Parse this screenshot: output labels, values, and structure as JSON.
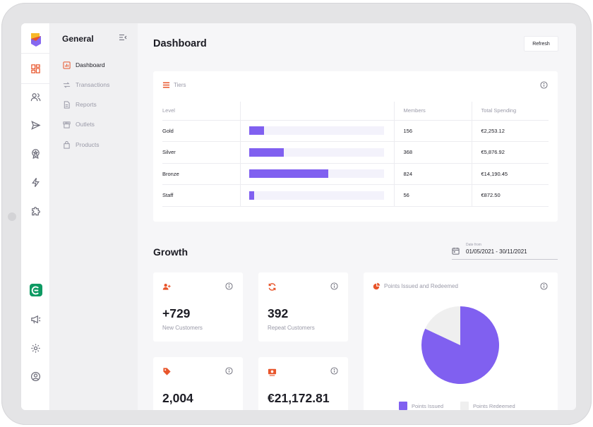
{
  "nav": {
    "title": "General",
    "items": [
      {
        "label": "Dashboard",
        "icon": "chart-icon",
        "active": true
      },
      {
        "label": "Transactions",
        "icon": "transfer-icon",
        "active": false
      },
      {
        "label": "Reports",
        "icon": "document-icon",
        "active": false
      },
      {
        "label": "Outlets",
        "icon": "store-icon",
        "active": false
      },
      {
        "label": "Products",
        "icon": "bag-icon",
        "active": false
      }
    ]
  },
  "rail": {
    "icons": [
      "dashboard-icon",
      "users-icon",
      "send-icon",
      "award-icon",
      "lightning-icon",
      "puzzle-icon",
      "brand-icon",
      "megaphone-icon",
      "settings-icon",
      "profile-icon"
    ]
  },
  "header": {
    "title": "Dashboard",
    "refresh_label": "Refresh"
  },
  "tiers": {
    "title": "Tiers",
    "columns": [
      "Level",
      "",
      "Members",
      "Total Spending"
    ],
    "rows": [
      {
        "level": "Gold",
        "fill": 0.11,
        "members": "156",
        "spending": "€2,253.12"
      },
      {
        "level": "Silver",
        "fill": 0.26,
        "members": "368",
        "spending": "€5,876.92"
      },
      {
        "level": "Bronze",
        "fill": 0.59,
        "members": "824",
        "spending": "€14,190.45"
      },
      {
        "level": "Staff",
        "fill": 0.04,
        "members": "56",
        "spending": "€872.50"
      }
    ]
  },
  "growth": {
    "title": "Growth",
    "date_label": "Date from",
    "date_range": "01/05/2021 - 30/11/2021",
    "stats": [
      {
        "value": "+729",
        "label": "New Customers",
        "icon": "add-user-icon"
      },
      {
        "value": "392",
        "label": "Repeat Customers",
        "icon": "repeat-icon"
      },
      {
        "value": "2,004",
        "label": "",
        "icon": "tag-icon"
      },
      {
        "value": "€21,172.81",
        "label": "",
        "icon": "cash-icon"
      }
    ],
    "points": {
      "title": "Points Issued and Redeemed",
      "issued_label": "Points Issued",
      "redeemed_label": "Points Redeemed"
    }
  },
  "chart_data": {
    "type": "pie",
    "title": "Points Issued and Redeemed",
    "labels": [
      "Points Issued",
      "Points Redeemed"
    ],
    "values": [
      82,
      18
    ],
    "colors": [
      "#8060f0",
      "#efefef"
    ]
  },
  "colors": {
    "accent": "#e8552b",
    "purple": "#8060f0",
    "brand_green": "#0e9a63"
  }
}
